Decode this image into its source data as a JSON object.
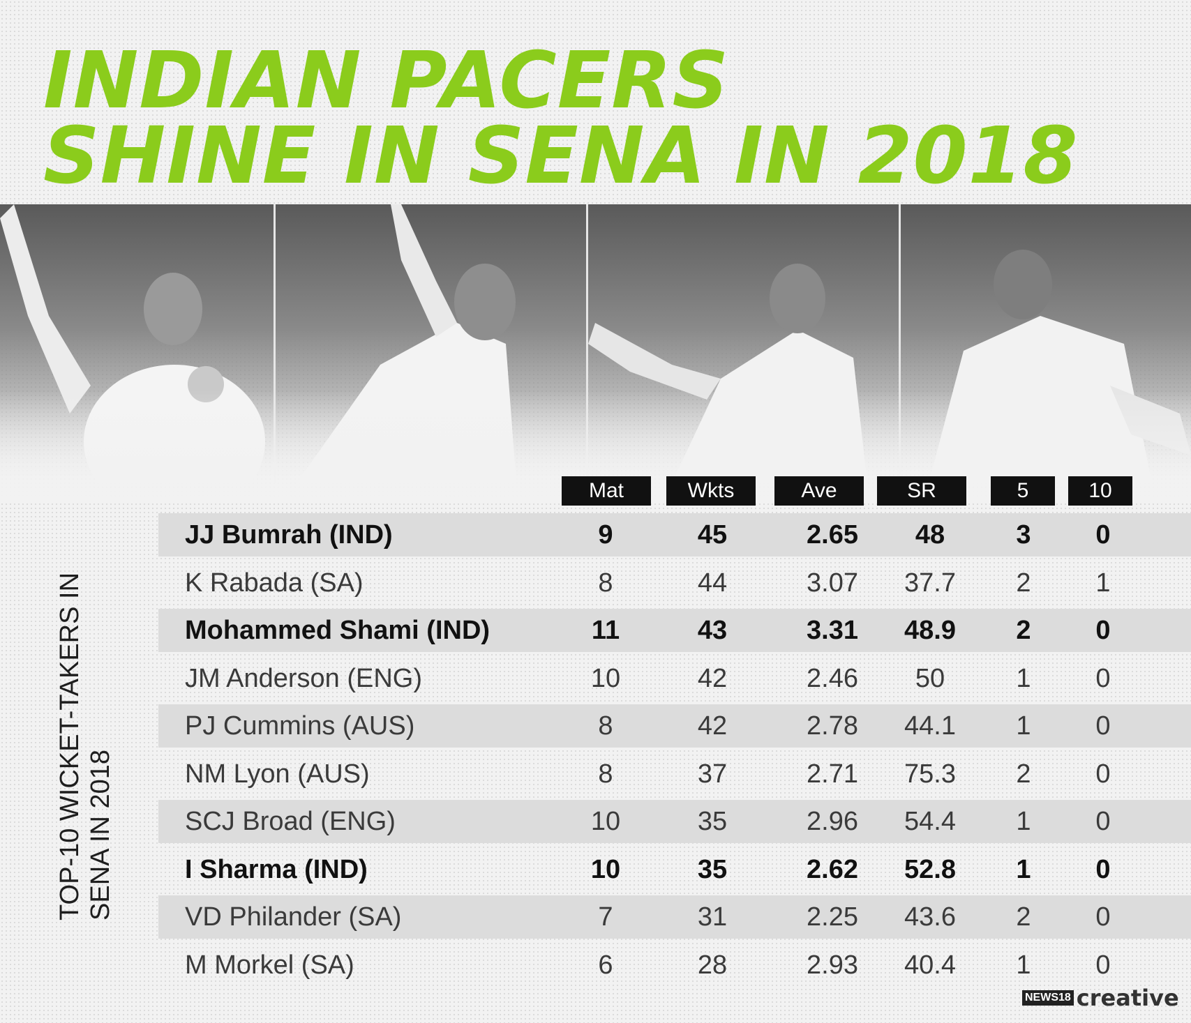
{
  "title": {
    "line1": "INDIAN PACERS",
    "line2": "SHINE IN SENA IN 2018"
  },
  "side_label": {
    "line1": "TOP-10 WICKET-TAKERS IN",
    "line2": "SENA IN 2018"
  },
  "colors": {
    "title": "#8bcc1c",
    "header_bg": "#111111",
    "shade": "#dcdcdc"
  },
  "logo": {
    "brand": "NEWS18",
    "suffix": "creative"
  },
  "chart_data": {
    "type": "table",
    "columns": [
      "Mat",
      "Wkts",
      "Ave",
      "SR",
      "5",
      "10"
    ],
    "rows": [
      {
        "name": "JJ Bumrah (IND)",
        "values": [
          "9",
          "45",
          "2.65",
          "48",
          "3",
          "0"
        ],
        "highlight": true
      },
      {
        "name": "K Rabada (SA)",
        "values": [
          "8",
          "44",
          "3.07",
          "37.7",
          "2",
          "1"
        ],
        "highlight": false
      },
      {
        "name": "Mohammed Shami (IND)",
        "values": [
          "11",
          "43",
          "3.31",
          "48.9",
          "2",
          "0"
        ],
        "highlight": true
      },
      {
        "name": "JM Anderson (ENG)",
        "values": [
          "10",
          "42",
          "2.46",
          "50",
          "1",
          "0"
        ],
        "highlight": false
      },
      {
        "name": "PJ Cummins (AUS)",
        "values": [
          "8",
          "42",
          "2.78",
          "44.1",
          "1",
          "0"
        ],
        "highlight": false
      },
      {
        "name": "NM Lyon (AUS)",
        "values": [
          "8",
          "37",
          "2.71",
          "75.3",
          "2",
          "0"
        ],
        "highlight": false
      },
      {
        "name": "SCJ Broad (ENG)",
        "values": [
          "10",
          "35",
          "2.96",
          "54.4",
          "1",
          "0"
        ],
        "highlight": false
      },
      {
        "name": "I Sharma (IND)",
        "values": [
          "10",
          "35",
          "2.62",
          "52.8",
          "1",
          "0"
        ],
        "highlight": true
      },
      {
        "name": "VD Philander (SA)",
        "values": [
          "7",
          "31",
          "2.25",
          "43.6",
          "2",
          "0"
        ],
        "highlight": false
      },
      {
        "name": "M Morkel (SA)",
        "values": [
          "6",
          "28",
          "2.93",
          "40.4",
          "1",
          "0"
        ],
        "highlight": false
      }
    ]
  }
}
